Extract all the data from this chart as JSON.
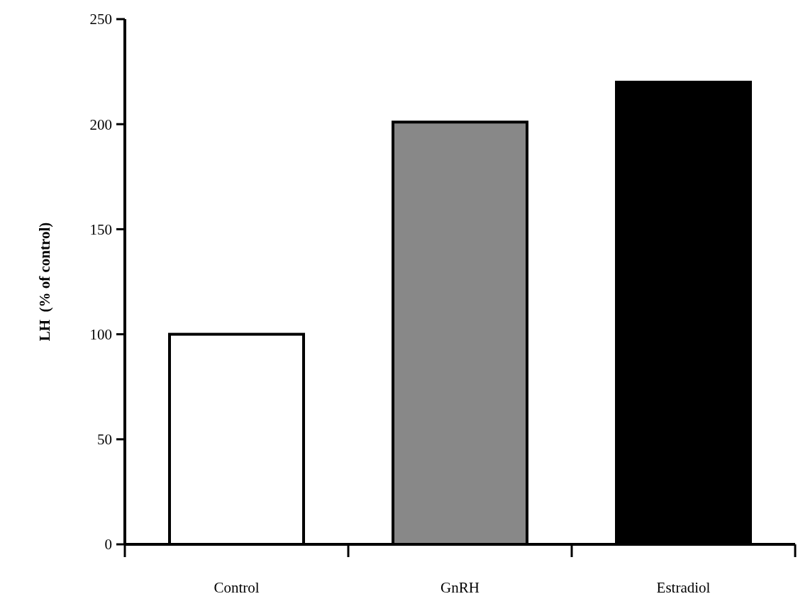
{
  "chart_data": {
    "type": "bar",
    "ylabel": "LH  (% of control)",
    "categories": [
      "Control",
      "GnRH",
      "Estradiol"
    ],
    "values": [
      100,
      201,
      220
    ],
    "colors": [
      "#ffffff",
      "#888888",
      "#000000"
    ],
    "ylim": [
      0,
      250
    ],
    "yticks": [
      0,
      50,
      100,
      150,
      200,
      250
    ],
    "grid": false
  }
}
